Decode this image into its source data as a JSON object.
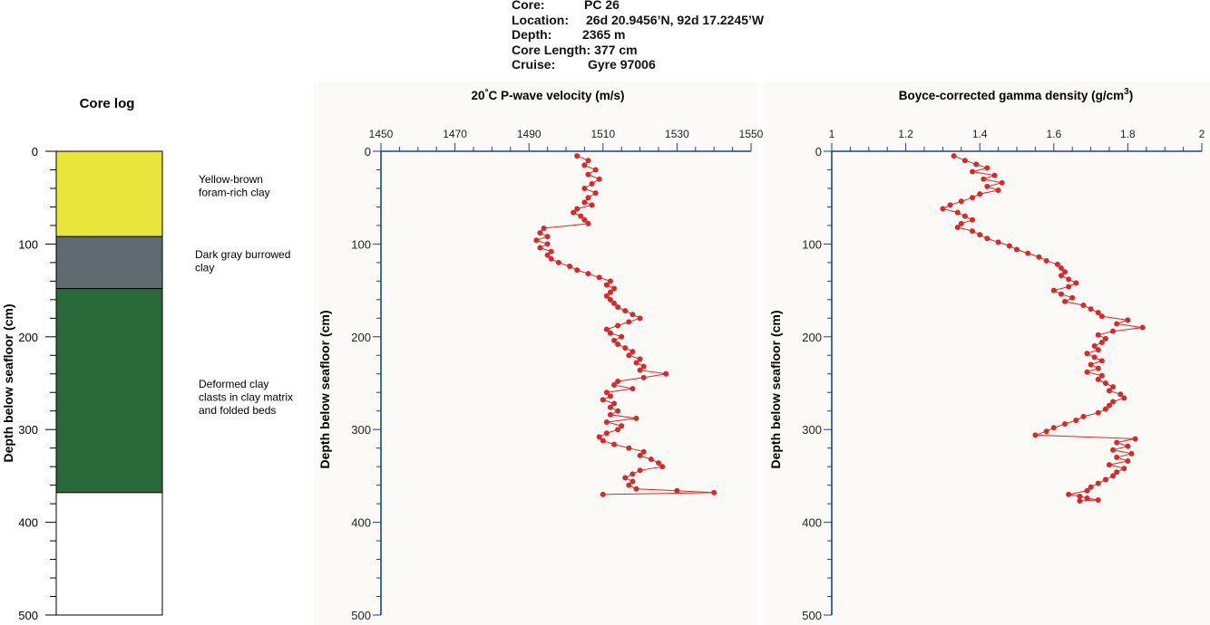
{
  "header": {
    "rows": [
      {
        "key": "Core:",
        "value": "PC 26"
      },
      {
        "key": "Location:",
        "value": "26d 20.9456’N, 92d 17.2245’W"
      },
      {
        "key": "Depth:",
        "value": "2365 m"
      },
      {
        "key": "Core Length:",
        "value": "377 cm"
      },
      {
        "key": "Cruise:",
        "value": "Gyre 97006"
      }
    ]
  },
  "core_log": {
    "title": "Core log",
    "units": [
      {
        "top": 0,
        "bottom": 92,
        "color": "#e8e43a",
        "label_lines": [
          "Yellow-brown",
          "foram-rich clay"
        ]
      },
      {
        "top": 92,
        "bottom": 148,
        "color": "#5f6a71",
        "label_lines": [
          "Dark gray burrowed",
          "clay"
        ]
      },
      {
        "top": 148,
        "bottom": 368,
        "color": "#2a6a3a",
        "label_lines": [
          "Deformed clay",
          "clasts in clay matrix",
          "and folded beds"
        ]
      },
      {
        "top": 368,
        "bottom": 500,
        "color": "#ffffff",
        "label_lines": []
      }
    ]
  },
  "colors": {
    "series": "#d8282a",
    "axis": "#1f3f93",
    "panel": "#fbfaf7"
  },
  "chart_data": [
    {
      "type": "line",
      "panel": "core-log",
      "title": "Core log",
      "ylabel": "Depth below seafloor (cm)",
      "ylim": [
        0,
        500
      ],
      "y_ticks": [
        0,
        100,
        200,
        300,
        400,
        500
      ],
      "y_tick_labels": [
        "0",
        "100",
        "200",
        "300",
        "400",
        "500"
      ]
    },
    {
      "type": "line",
      "panel": "p-wave",
      "title": "20°C P-wave velocity (m/s)",
      "title_parts": {
        "pre": "20",
        "deg": "°",
        "post": "C P-wave velocity (m/s)",
        "sup": ""
      },
      "xlabel": "",
      "ylabel": "Depth below seafloor (cm)",
      "xlim": [
        1450,
        1550
      ],
      "ylim": [
        0,
        500
      ],
      "x_ticks": [
        1450,
        1470,
        1490,
        1510,
        1530,
        1550
      ],
      "x_tick_labels": [
        "1450",
        "1470",
        "1490",
        "1510",
        "1530",
        "1550"
      ],
      "y_ticks": [
        0,
        100,
        200,
        300,
        400,
        500
      ],
      "y_tick_labels": [
        "0",
        "100",
        "200",
        "300",
        "400",
        "500"
      ],
      "series": [
        {
          "x": [
            1503,
            1506,
            1505,
            1508,
            1506,
            1509,
            1507,
            1505,
            1508,
            1506,
            1505,
            1507,
            1503,
            1502,
            1504,
            1505,
            1506,
            1494,
            1493,
            1495,
            1492,
            1495,
            1493,
            1496,
            1495,
            1496,
            1498,
            1501,
            1503,
            1506,
            1509,
            1512,
            1511,
            1513,
            1512,
            1511,
            1512,
            1513,
            1514,
            1516,
            1518,
            1520,
            1517,
            1514,
            1511,
            1512,
            1515,
            1513,
            1514,
            1516,
            1518,
            1517,
            1520,
            1519,
            1521,
            1520,
            1527,
            1521,
            1514,
            1513,
            1518,
            1511,
            1512,
            1510,
            1513,
            1512,
            1514,
            1512,
            1519,
            1511,
            1515,
            1514,
            1511,
            1509,
            1510,
            1513,
            1517,
            1521,
            1520,
            1523,
            1525,
            1526,
            1520,
            1518,
            1516,
            1518,
            1517,
            1519,
            1530,
            1540,
            1510
          ],
          "y": [
            5,
            10,
            15,
            20,
            25,
            30,
            35,
            40,
            45,
            50,
            55,
            58,
            62,
            66,
            70,
            74,
            78,
            83,
            88,
            92,
            96,
            100,
            104,
            108,
            112,
            116,
            120,
            124,
            128,
            132,
            136,
            140,
            144,
            148,
            152,
            156,
            160,
            164,
            168,
            172,
            176,
            180,
            184,
            188,
            192,
            196,
            200,
            204,
            208,
            212,
            216,
            220,
            224,
            228,
            232,
            236,
            240,
            244,
            248,
            252,
            256,
            260,
            264,
            268,
            272,
            276,
            280,
            284,
            288,
            292,
            296,
            300,
            304,
            308,
            312,
            316,
            320,
            324,
            328,
            332,
            336,
            340,
            344,
            348,
            352,
            356,
            360,
            364,
            366,
            368,
            370
          ]
        }
      ]
    },
    {
      "type": "line",
      "panel": "gamma",
      "title": "Boyce-corrected gamma density (g/cm3)",
      "title_parts": {
        "pre": "Boyce-corrected gamma density (g/cm",
        "deg": "",
        "sup": "3",
        "post": ")"
      },
      "xlabel": "",
      "ylabel": "Depth below seafloor (cm)",
      "xlim": [
        1,
        2
      ],
      "ylim": [
        0,
        500
      ],
      "x_ticks": [
        1,
        1.2,
        1.4,
        1.6,
        1.8,
        2
      ],
      "x_tick_labels": [
        "1",
        "1.2",
        "1.4",
        "1.6",
        "1.8",
        "2"
      ],
      "y_ticks": [
        0,
        100,
        200,
        300,
        400,
        500
      ],
      "y_tick_labels": [
        "0",
        "100",
        "200",
        "300",
        "400",
        "500"
      ],
      "series": [
        {
          "x": [
            1.33,
            1.36,
            1.39,
            1.42,
            1.38,
            1.44,
            1.41,
            1.46,
            1.42,
            1.45,
            1.4,
            1.38,
            1.35,
            1.32,
            1.3,
            1.34,
            1.36,
            1.38,
            1.35,
            1.34,
            1.38,
            1.4,
            1.42,
            1.45,
            1.48,
            1.5,
            1.53,
            1.56,
            1.58,
            1.61,
            1.62,
            1.63,
            1.62,
            1.64,
            1.66,
            1.64,
            1.6,
            1.62,
            1.65,
            1.63,
            1.68,
            1.7,
            1.72,
            1.73,
            1.8,
            1.77,
            1.84,
            1.76,
            1.72,
            1.74,
            1.73,
            1.71,
            1.72,
            1.69,
            1.71,
            1.73,
            1.7,
            1.72,
            1.69,
            1.73,
            1.72,
            1.74,
            1.76,
            1.75,
            1.78,
            1.79,
            1.76,
            1.75,
            1.74,
            1.72,
            1.68,
            1.66,
            1.63,
            1.6,
            1.58,
            1.55,
            1.82,
            1.77,
            1.8,
            1.76,
            1.81,
            1.77,
            1.8,
            1.75,
            1.79,
            1.77,
            1.76,
            1.74,
            1.72,
            1.7,
            1.69,
            1.64,
            1.67,
            1.69,
            1.72,
            1.67
          ],
          "y": [
            5,
            10,
            14,
            18,
            22,
            26,
            30,
            34,
            38,
            42,
            46,
            50,
            54,
            58,
            62,
            66,
            70,
            74,
            78,
            82,
            86,
            90,
            94,
            98,
            102,
            106,
            110,
            114,
            118,
            122,
            126,
            130,
            134,
            138,
            142,
            146,
            150,
            154,
            158,
            162,
            166,
            170,
            174,
            178,
            182,
            186,
            190,
            194,
            198,
            202,
            206,
            210,
            214,
            218,
            222,
            226,
            230,
            234,
            238,
            242,
            246,
            250,
            254,
            258,
            262,
            266,
            270,
            274,
            278,
            282,
            286,
            290,
            294,
            298,
            302,
            306,
            310,
            314,
            318,
            322,
            326,
            330,
            334,
            338,
            342,
            346,
            350,
            354,
            358,
            362,
            366,
            370,
            372,
            374,
            376,
            377
          ]
        }
      ]
    }
  ]
}
